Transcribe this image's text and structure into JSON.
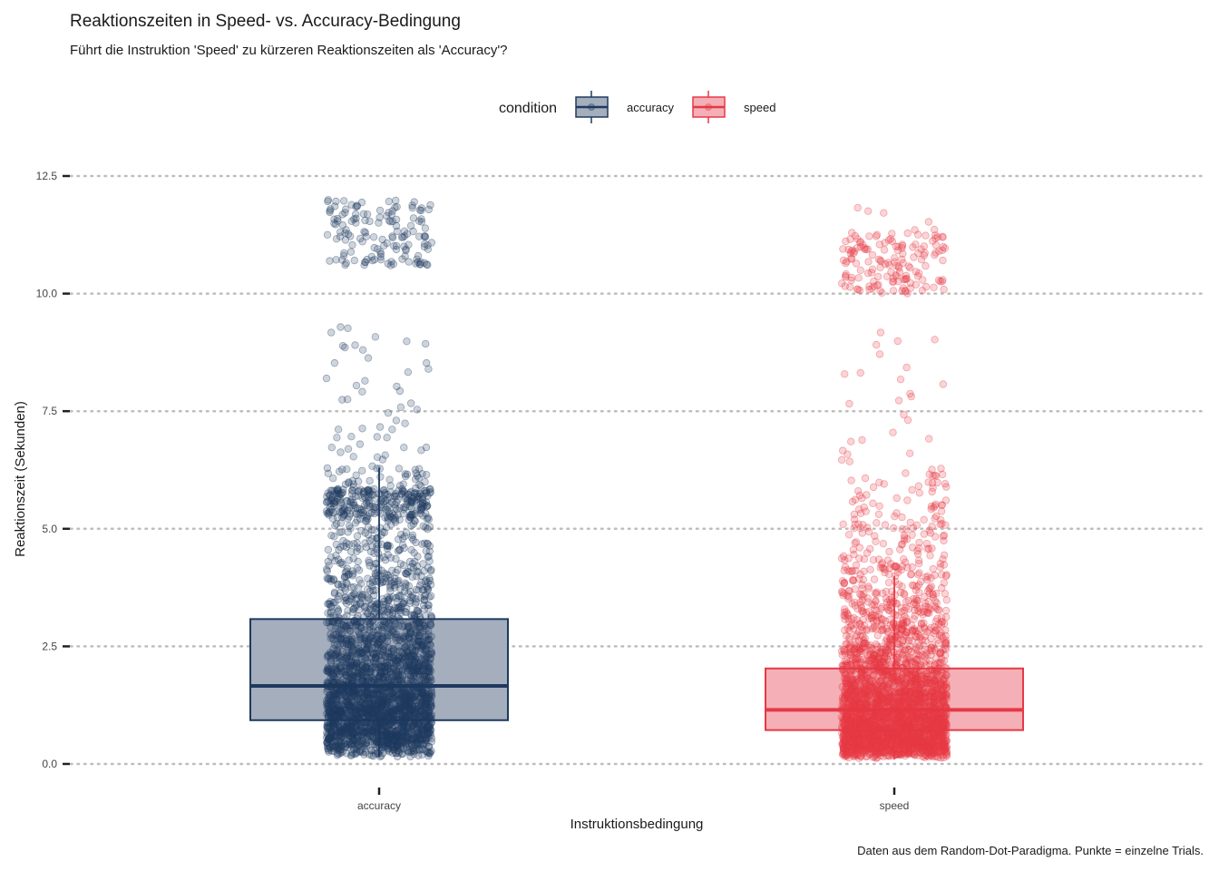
{
  "chart_data": {
    "type": "boxplot",
    "title": "Reaktionszeiten in Speed- vs. Accuracy-Bedingung",
    "subtitle": "Führt die Instruktion 'Speed' zu kürzeren Reaktionszeiten als 'Accuracy'?",
    "caption": "Daten aus dem Random-Dot-Paradigma. Punkte = einzelne Trials.",
    "xlabel": "Instruktionsbedingung",
    "ylabel": "Reaktionszeit (Sekunden)",
    "ylim": [
      0,
      12.5
    ],
    "y_ticks": [
      0,
      2.5,
      5,
      7.5,
      10,
      12.5
    ],
    "y_tick_labels": [
      "0.0",
      "2.5",
      "5.0",
      "7.5",
      "10.0",
      "12.5"
    ],
    "grid": "horizontal-dotted",
    "legend": {
      "title": "condition",
      "placement": "top",
      "entries": [
        "accuracy",
        "speed"
      ]
    },
    "categories": [
      "accuracy",
      "speed"
    ],
    "series": [
      {
        "name": "accuracy",
        "color": "#1f3a5f",
        "fill": "#a4aebd",
        "q1": 0.93,
        "median": 1.66,
        "q3": 3.08,
        "whisker_low": 0.15,
        "whisker_high": 6.3,
        "n_points": 3200,
        "point_range": [
          0.15,
          12.0
        ]
      },
      {
        "name": "speed",
        "color": "#e63946",
        "fill": "#f4b0b6",
        "q1": 0.72,
        "median": 1.15,
        "q3": 2.03,
        "whisker_low": 0.1,
        "whisker_high": 4.0,
        "n_points": 3200,
        "point_range": [
          0.1,
          12.0
        ]
      }
    ]
  }
}
